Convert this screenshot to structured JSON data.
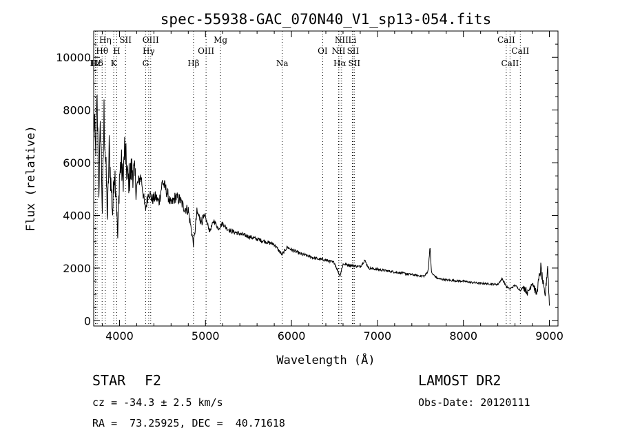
{
  "chart_data": {
    "type": "line",
    "title": "spec-55938-GAC_070N40_V1_sp13-054.fits",
    "xlabel": "Wavelength (Å)",
    "ylabel": "Flux (relative)",
    "xlim": [
      3700,
      9100
    ],
    "ylim": [
      -200,
      11000
    ],
    "xticks": [
      4000,
      5000,
      6000,
      7000,
      8000,
      9000
    ],
    "yticks": [
      0,
      2000,
      4000,
      6000,
      8000,
      10000
    ],
    "series": [
      {
        "name": "flux",
        "x": [
          3700,
          3720,
          3740,
          3760,
          3780,
          3800,
          3820,
          3840,
          3860,
          3880,
          3900,
          3920,
          3940,
          3960,
          3980,
          4000,
          4020,
          4040,
          4060,
          4080,
          4100,
          4150,
          4200,
          4250,
          4300,
          4340,
          4380,
          4420,
          4460,
          4500,
          4550,
          4600,
          4650,
          4700,
          4750,
          4800,
          4861,
          4900,
          4950,
          5000,
          5050,
          5100,
          5150,
          5200,
          5250,
          5300,
          5400,
          5500,
          5600,
          5700,
          5800,
          5890,
          5950,
          6000,
          6100,
          6200,
          6300,
          6400,
          6500,
          6563,
          6600,
          6700,
          6800,
          6850,
          6900,
          7000,
          7100,
          7200,
          7300,
          7400,
          7500,
          7550,
          7590,
          7610,
          7630,
          7700,
          7800,
          7900,
          8000,
          8100,
          8200,
          8300,
          8400,
          8450,
          8500,
          8542,
          8600,
          8662,
          8700,
          8750,
          8800,
          8850,
          8900,
          8950,
          8980,
          9000
        ],
        "values": [
          7800,
          6500,
          8100,
          5000,
          7500,
          4200,
          7800,
          6000,
          3900,
          6500,
          5200,
          4100,
          5800,
          5000,
          3100,
          5500,
          6000,
          5300,
          6500,
          5900,
          5300,
          5800,
          5100,
          5500,
          4200,
          4900,
          4600,
          4700,
          4500,
          5300,
          4900,
          4400,
          4700,
          4600,
          4300,
          4200,
          2900,
          4100,
          3800,
          3900,
          3400,
          3800,
          3500,
          3700,
          3500,
          3400,
          3300,
          3200,
          3100,
          3000,
          2900,
          2500,
          2800,
          2700,
          2550,
          2450,
          2350,
          2300,
          2200,
          1700,
          2150,
          2100,
          2050,
          2300,
          2000,
          1950,
          1900,
          1850,
          1800,
          1750,
          1700,
          1700,
          1900,
          2800,
          1800,
          1600,
          1550,
          1520,
          1500,
          1450,
          1420,
          1400,
          1380,
          1600,
          1300,
          1200,
          1350,
          1150,
          1300,
          1050,
          1500,
          1000,
          2000,
          900,
          2100,
          600
        ]
      }
    ],
    "line_markers": [
      {
        "label": "Hη",
        "x": 3835,
        "row": 0
      },
      {
        "label": "Hθ",
        "x": 3798,
        "row": 1
      },
      {
        "label": "Hε",
        "x": 3720,
        "row": 2
      },
      {
        "label": "Hδ",
        "x": 3740,
        "row": 2
      },
      {
        "label": "SII",
        "x": 4070,
        "row": 0
      },
      {
        "label": "H",
        "x": 3968,
        "row": 1
      },
      {
        "label": "K",
        "x": 3933,
        "row": 2
      },
      {
        "label": "OIII",
        "x": 4363,
        "row": 0
      },
      {
        "label": "Hγ",
        "x": 4340,
        "row": 1
      },
      {
        "label": "G",
        "x": 4304,
        "row": 2
      },
      {
        "label": "Mg",
        "x": 5175,
        "row": 0
      },
      {
        "label": "OIII",
        "x": 5007,
        "row": 1
      },
      {
        "label": "Hβ",
        "x": 4861,
        "row": 2
      },
      {
        "label": "Na",
        "x": 5893,
        "row": 2
      },
      {
        "label": "NII",
        "x": 6583,
        "row": 0
      },
      {
        "label": "Li",
        "x": 6708,
        "row": 0
      },
      {
        "label": "OI",
        "x": 6363,
        "row": 1
      },
      {
        "label": "NII",
        "x": 6548,
        "row": 1
      },
      {
        "label": "SII",
        "x": 6716,
        "row": 1
      },
      {
        "label": "Hα",
        "x": 6563,
        "row": 2
      },
      {
        "label": "SII",
        "x": 6731,
        "row": 2
      },
      {
        "label": "CaII",
        "x": 8498,
        "row": 0
      },
      {
        "label": "CaII",
        "x": 8662,
        "row": 1
      },
      {
        "label": "CaII",
        "x": 8542,
        "row": 2
      }
    ]
  },
  "info": {
    "object_class": "STAR",
    "subclass": "F2",
    "survey": "LAMOST DR2",
    "cz": "cz = -34.3 ± 2.5 km/s",
    "obs_date": "Obs-Date: 20120111",
    "radec": "RA =  73.25925, DEC =  40.71618"
  }
}
